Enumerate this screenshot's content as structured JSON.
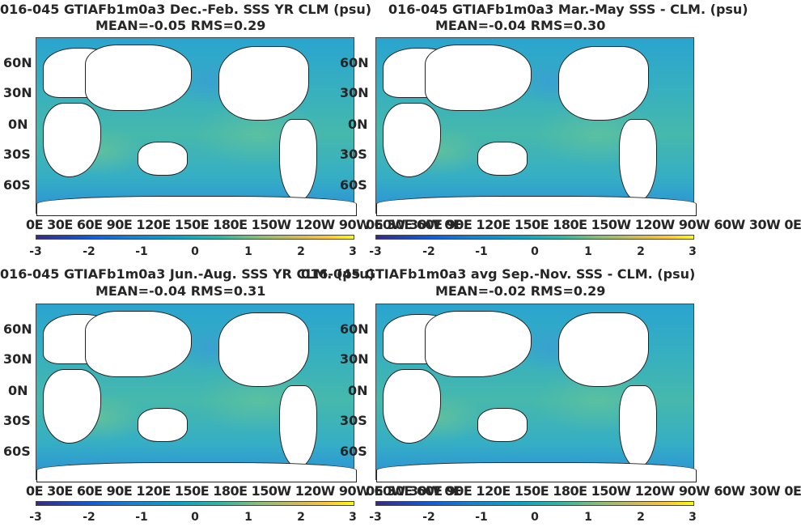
{
  "panels": [
    {
      "title_line1": "016-045 GTIAFb1m0a3  Dec.-Feb. SSS YR CLM (psu)",
      "title_line2": "MEAN=-0.05   RMS=0.29",
      "lat_labels": [
        "60N",
        "30N",
        "0N",
        "30S",
        "60S"
      ],
      "lon_labels": "0E 30E 60E 90E 120E 150E 180E 150W 120W 90W 60W 30W 0E",
      "colorbar_ticks": [
        "-3",
        "-2",
        "-1",
        "0",
        "1",
        "2",
        "3"
      ]
    },
    {
      "title_line1": "016-045 GTIAFb1m0a3 Mar.-May SSS - CLM. (psu)",
      "title_line2": "MEAN=-0.04   RMS=0.30",
      "lat_labels": [
        "60N",
        "30N",
        "0N",
        "30S",
        "60S"
      ],
      "lon_labels": "0E 30E 60E 90E 120E 150E 180E 150W 120W 90W 60W 30W 0E",
      "colorbar_ticks": [
        "-3",
        "-2",
        "-1",
        "0",
        "1",
        "2",
        "3"
      ]
    },
    {
      "title_line1": "016-045 GTIAFb1m0a3 Jun.-Aug. SSS YR CLM. (psu)",
      "title_line2": "MEAN=-0.04   RMS=0.31",
      "lat_labels": [
        "60N",
        "30N",
        "0N",
        "30S",
        "60S"
      ],
      "lon_labels": "0E 30E 60E 90E 120E 150E 180E 150W 120W 90W 60W 30W 0E",
      "colorbar_ticks": [
        "-3",
        "-2",
        "-1",
        "0",
        "1",
        "2",
        "3"
      ]
    },
    {
      "title_line1": "016-045 GTIAFb1m0a3 avg Sep.-Nov. SSS - CLM. (psu)",
      "title_line2": "MEAN=-0.02   RMS=0.29",
      "lat_labels": [
        "60N",
        "30N",
        "0N",
        "30S",
        "60S"
      ],
      "lon_labels": "0E 30E 60E 90E 120E 150E 180E 150W 120W 90W 60W 30W 0E",
      "colorbar_ticks": [
        "-3",
        "-2",
        "-1",
        "0",
        "1",
        "2",
        "3"
      ]
    }
  ],
  "colors": {
    "colormap": "parula",
    "land": "#ffffff"
  }
}
